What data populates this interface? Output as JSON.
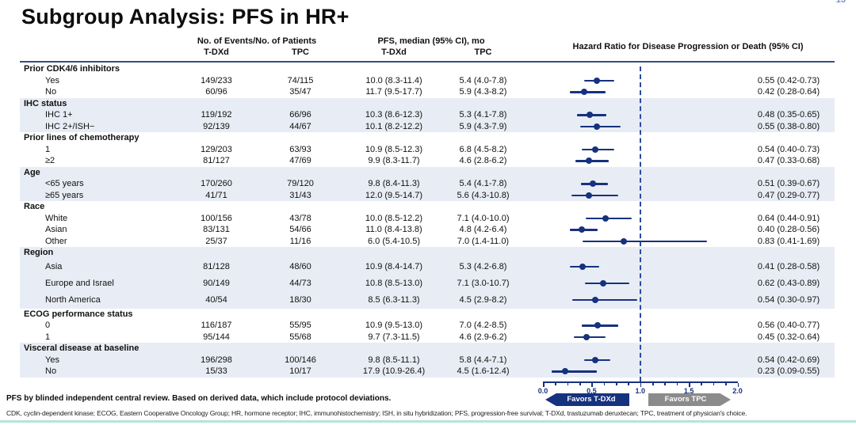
{
  "page_number": "13",
  "title": "Subgroup Analysis: PFS in HR+",
  "header": {
    "events_group": "No. of Events/No. of Patients",
    "pfs_group": "PFS, median (95% CI), mo",
    "hr_group": "Hazard Ratio for Disease Progression or Death  (95% CI)",
    "tdxd": "T-DXd",
    "tpc": "TPC"
  },
  "chart_data": {
    "type": "forest",
    "axis": {
      "min": 0.0,
      "max": 2.0,
      "ticks": [
        "0.0",
        "0.5",
        "1.0",
        "1.5",
        "2.0"
      ],
      "minor_step": 0.125,
      "reference_line": 1.0
    },
    "favors_left": "Favors T-DXd",
    "favors_right": "Favors TPC",
    "sections": [
      {
        "label": "Prior CDK4/6 inhibitors",
        "shaded": false,
        "rows": [
          {
            "label": "Yes",
            "ev_tdxd": "149/233",
            "ev_tpc": "74/115",
            "pfs_tdxd": "10.0 (8.3-11.4)",
            "pfs_tpc": "5.4 (4.0-7.8)",
            "hr": 0.55,
            "lo": 0.42,
            "hi": 0.73,
            "hr_text": "0.55 (0.42-0.73)"
          },
          {
            "label": "No",
            "ev_tdxd": "60/96",
            "ev_tpc": "35/47",
            "pfs_tdxd": "11.7 (9.5-17.7)",
            "pfs_tpc": "5.9 (4.3-8.2)",
            "hr": 0.42,
            "lo": 0.28,
            "hi": 0.64,
            "hr_text": "0.42 (0.28-0.64)"
          }
        ]
      },
      {
        "label": "IHC status",
        "shaded": true,
        "rows": [
          {
            "label": "IHC 1+",
            "ev_tdxd": "119/192",
            "ev_tpc": "66/96",
            "pfs_tdxd": "10.3 (8.6-12.3)",
            "pfs_tpc": "5.3 (4.1-7.8)",
            "hr": 0.48,
            "lo": 0.35,
            "hi": 0.65,
            "hr_text": "0.48 (0.35-0.65)"
          },
          {
            "label": "IHC 2+/ISH−",
            "ev_tdxd": "92/139",
            "ev_tpc": "44/67",
            "pfs_tdxd": "10.1 (8.2-12.2)",
            "pfs_tpc": "5.9 (4.3-7.9)",
            "hr": 0.55,
            "lo": 0.38,
            "hi": 0.8,
            "hr_text": "0.55 (0.38-0.80)"
          }
        ]
      },
      {
        "label": "Prior lines of chemotherapy",
        "shaded": false,
        "rows": [
          {
            "label": "1",
            "ev_tdxd": "129/203",
            "ev_tpc": "63/93",
            "pfs_tdxd": "10.9 (8.5-12.3)",
            "pfs_tpc": "6.8 (4.5-8.2)",
            "hr": 0.54,
            "lo": 0.4,
            "hi": 0.73,
            "hr_text": "0.54 (0.40-0.73)"
          },
          {
            "label": "≥2",
            "ev_tdxd": "81/127",
            "ev_tpc": "47/69",
            "pfs_tdxd": "9.9 (8.3-11.7)",
            "pfs_tpc": "4.6 (2.8-6.2)",
            "hr": 0.47,
            "lo": 0.33,
            "hi": 0.68,
            "hr_text": "0.47 (0.33-0.68)"
          }
        ]
      },
      {
        "label": "Age",
        "shaded": true,
        "rows": [
          {
            "label": "<65 years",
            "ev_tdxd": "170/260",
            "ev_tpc": "79/120",
            "pfs_tdxd": "9.8 (8.4-11.3)",
            "pfs_tpc": "5.4 (4.1-7.8)",
            "hr": 0.51,
            "lo": 0.39,
            "hi": 0.67,
            "hr_text": "0.51 (0.39-0.67)"
          },
          {
            "label": "≥65 years",
            "ev_tdxd": "41/71",
            "ev_tpc": "31/43",
            "pfs_tdxd": "12.0 (9.5-14.7)",
            "pfs_tpc": "5.6 (4.3-10.8)",
            "hr": 0.47,
            "lo": 0.29,
            "hi": 0.77,
            "hr_text": "0.47 (0.29-0.77)"
          }
        ]
      },
      {
        "label": "Race",
        "shaded": false,
        "rows": [
          {
            "label": "White",
            "ev_tdxd": "100/156",
            "ev_tpc": "43/78",
            "pfs_tdxd": "10.0 (8.5-12.2)",
            "pfs_tpc": "7.1 (4.0-10.0)",
            "hr": 0.64,
            "lo": 0.44,
            "hi": 0.91,
            "hr_text": "0.64 (0.44-0.91)"
          },
          {
            "label": "Asian",
            "ev_tdxd": "83/131",
            "ev_tpc": "54/66",
            "pfs_tdxd": "11.0 (8.4-13.8)",
            "pfs_tpc": "4.8 (4.2-6.4)",
            "hr": 0.4,
            "lo": 0.28,
            "hi": 0.56,
            "hr_text": "0.40 (0.28-0.56)"
          },
          {
            "label": "Other",
            "ev_tdxd": "25/37",
            "ev_tpc": "11/16",
            "pfs_tdxd": "6.0 (5.4-10.5)",
            "pfs_tpc": "7.0 (1.4-11.0)",
            "hr": 0.83,
            "lo": 0.41,
            "hi": 1.69,
            "hr_text": "0.83 (0.41-1.69)"
          }
        ]
      },
      {
        "label": "Region",
        "shaded": true,
        "spacing": "wide",
        "rows": [
          {
            "label": "Asia",
            "ev_tdxd": "81/128",
            "ev_tpc": "48/60",
            "pfs_tdxd": "10.9 (8.4-14.7)",
            "pfs_tpc": "5.3 (4.2-6.8)",
            "hr": 0.41,
            "lo": 0.28,
            "hi": 0.58,
            "hr_text": "0.41 (0.28-0.58)"
          },
          {
            "label": "Europe and Israel",
            "ev_tdxd": "90/149",
            "ev_tpc": "44/73",
            "pfs_tdxd": "10.8 (8.5-13.0)",
            "pfs_tpc": "7.1 (3.0-10.7)",
            "hr": 0.62,
            "lo": 0.43,
            "hi": 0.89,
            "hr_text": "0.62 (0.43-0.89)"
          },
          {
            "label": "North America",
            "ev_tdxd": "40/54",
            "ev_tpc": "18/30",
            "pfs_tdxd": "8.5 (6.3-11.3)",
            "pfs_tpc": "4.5 (2.9-8.2)",
            "hr": 0.54,
            "lo": 0.3,
            "hi": 0.97,
            "hr_text": "0.54 (0.30-0.97)"
          }
        ]
      },
      {
        "label": "ECOG performance status",
        "shaded": false,
        "rows": [
          {
            "label": "0",
            "ev_tdxd": "116/187",
            "ev_tpc": "55/95",
            "pfs_tdxd": "10.9 (9.5-13.0)",
            "pfs_tpc": "7.0 (4.2-8.5)",
            "hr": 0.56,
            "lo": 0.4,
            "hi": 0.77,
            "hr_text": "0.56 (0.40-0.77)"
          },
          {
            "label": "1",
            "ev_tdxd": "95/144",
            "ev_tpc": "55/68",
            "pfs_tdxd": "9.7 (7.3-11.5)",
            "pfs_tpc": "4.6 (2.9-6.2)",
            "hr": 0.45,
            "lo": 0.32,
            "hi": 0.64,
            "hr_text": "0.45 (0.32-0.64)"
          }
        ]
      },
      {
        "label": "Visceral disease at baseline",
        "shaded": true,
        "rows": [
          {
            "label": "Yes",
            "ev_tdxd": "196/298",
            "ev_tpc": "100/146",
            "pfs_tdxd": "9.8 (8.5-11.1)",
            "pfs_tpc": "5.8 (4.4-7.1)",
            "hr": 0.54,
            "lo": 0.42,
            "hi": 0.69,
            "hr_text": "0.54 (0.42-0.69)"
          },
          {
            "label": "No",
            "ev_tdxd": "15/33",
            "ev_tpc": "10/17",
            "pfs_tdxd": "17.9 (10.9-26.4)",
            "pfs_tpc": "4.5 (1.6-12.4)",
            "hr": 0.23,
            "lo": 0.09,
            "hi": 0.55,
            "hr_text": "0.23 (0.09-0.55)"
          }
        ]
      }
    ]
  },
  "footnotes": {
    "line1": "PFS by blinded independent central review. Based on derived data, which include protocol deviations.",
    "line2": "CDK, cyclin-dependent kinase; ECOG, Eastern Cooperative Oncology Group; HR, hormone receptor; IHC, immunohistochemistry; ISH, in situ hybridization; PFS, progression-free survival; T-DXd, trastuzumab deruxtecan; TPC, treatment of physician's choice."
  },
  "colors": {
    "navy": "#16327e",
    "shaded_band": "#e8ecf4",
    "gray_arrow": "#8b8b8b",
    "teal_rule": "#b5e3db"
  }
}
